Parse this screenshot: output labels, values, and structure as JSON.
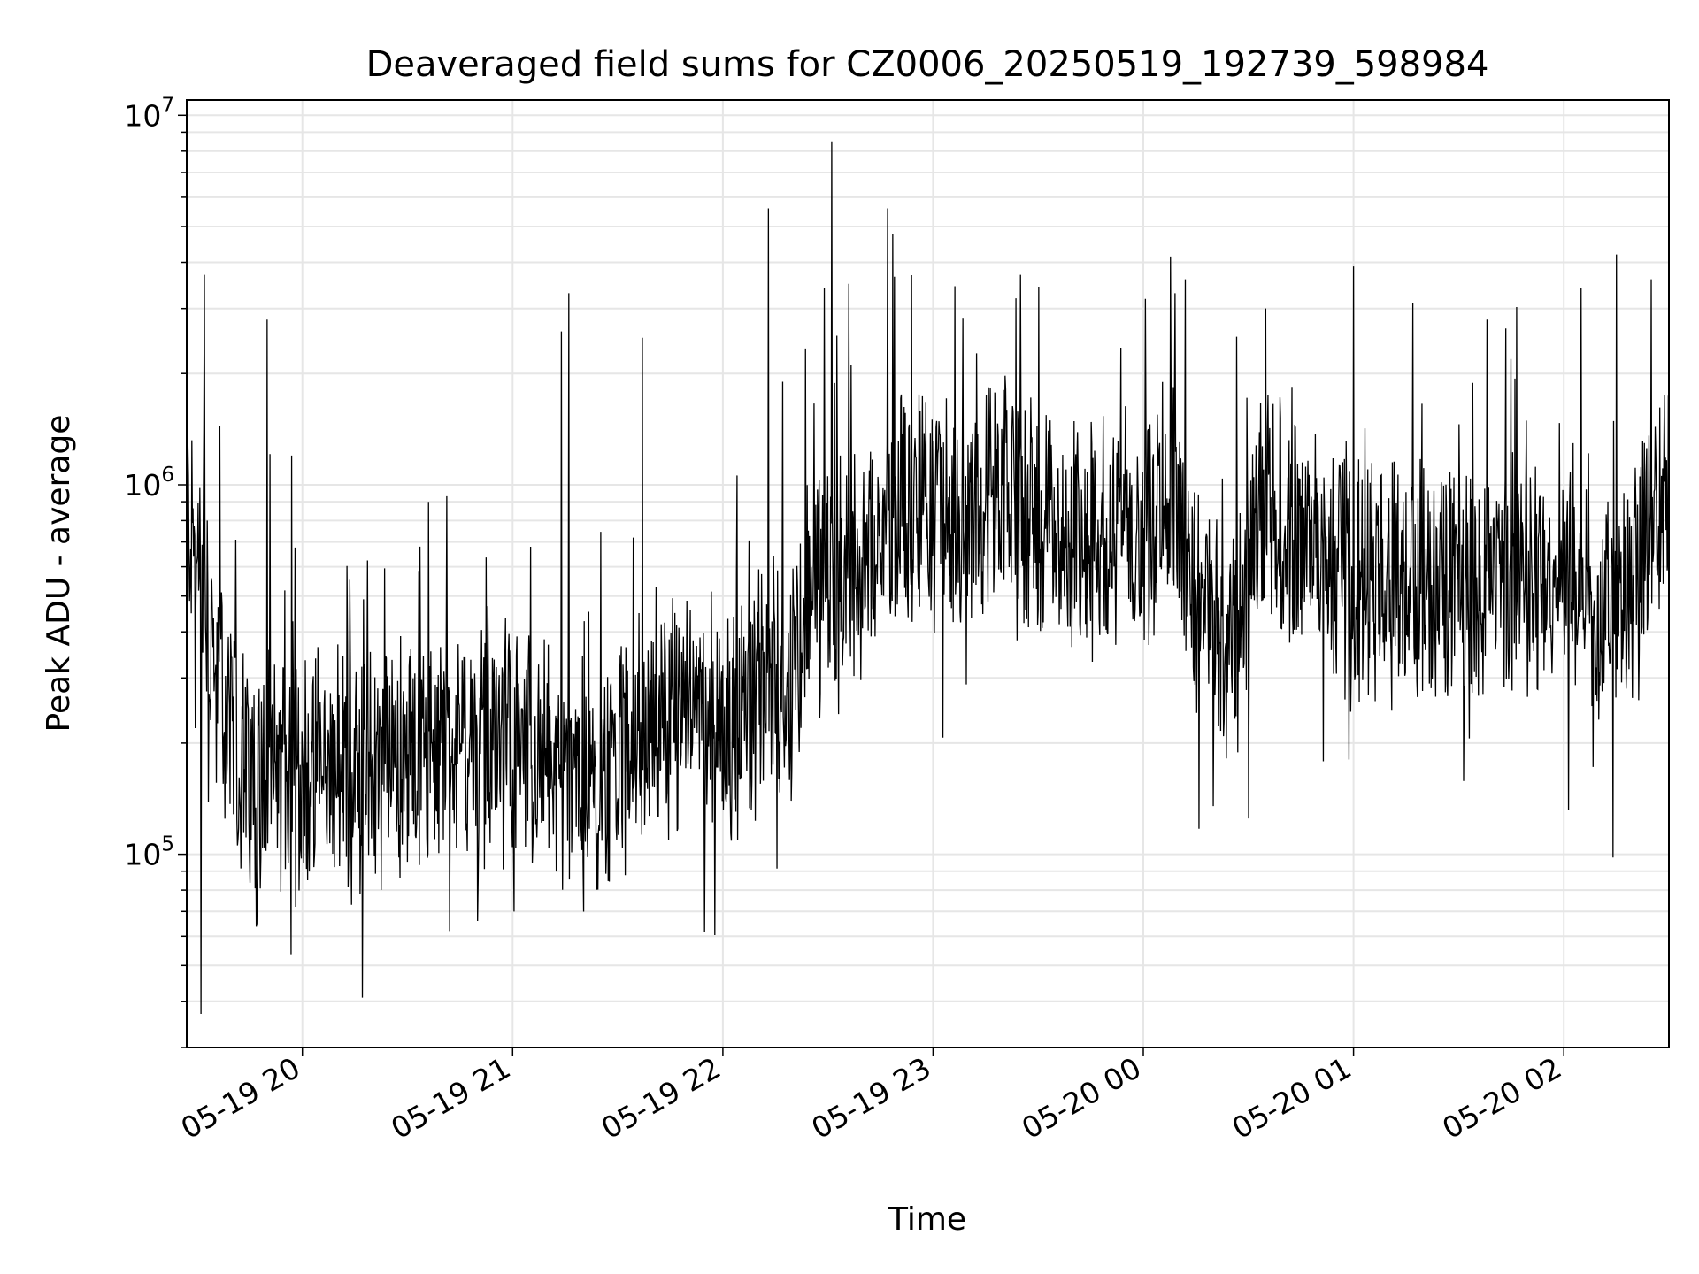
{
  "chart_data": {
    "type": "line",
    "title": "Deaveraged field sums for CZ0006_20250519_192739_598984",
    "xlabel": "Time",
    "ylabel": "Peak ADU - average",
    "yscale": "log",
    "ylim": [
      30000,
      11000000
    ],
    "xlim": [
      "2025-05-19 19:27",
      "2025-05-20 02:30"
    ],
    "grid": true,
    "line_color": "#000000",
    "grid_color": "#e6e6e6",
    "x_ticks": [
      {
        "value": "2025-05-19 20:00",
        "label": "05-19 20"
      },
      {
        "value": "2025-05-19 21:00",
        "label": "05-19 21"
      },
      {
        "value": "2025-05-19 22:00",
        "label": "05-19 22"
      },
      {
        "value": "2025-05-19 23:00",
        "label": "05-19 23"
      },
      {
        "value": "2025-05-20 00:00",
        "label": "05-20 00"
      },
      {
        "value": "2025-05-20 01:00",
        "label": "05-20 01"
      },
      {
        "value": "2025-05-20 02:00",
        "label": "05-20 02"
      }
    ],
    "y_ticks": [
      {
        "value": 100000,
        "base": "10",
        "exp": "5"
      },
      {
        "value": 1000000,
        "base": "10",
        "exp": "6"
      },
      {
        "value": 10000000,
        "base": "10",
        "exp": "7"
      }
    ],
    "baseline": [
      {
        "x": "2025-05-19 19:27",
        "y": 900000
      },
      {
        "x": "2025-05-19 19:35",
        "y": 300000
      },
      {
        "x": "2025-05-19 19:45",
        "y": 160000
      },
      {
        "x": "2025-05-19 20:00",
        "y": 160000
      },
      {
        "x": "2025-05-19 20:30",
        "y": 180000
      },
      {
        "x": "2025-05-19 21:00",
        "y": 200000
      },
      {
        "x": "2025-05-19 21:20",
        "y": 150000
      },
      {
        "x": "2025-05-19 21:45",
        "y": 230000
      },
      {
        "x": "2025-05-19 22:00",
        "y": 230000
      },
      {
        "x": "2025-05-19 22:20",
        "y": 300000
      },
      {
        "x": "2025-05-19 22:25",
        "y": 500000
      },
      {
        "x": "2025-05-19 22:40",
        "y": 600000
      },
      {
        "x": "2025-05-19 22:50",
        "y": 850000
      },
      {
        "x": "2025-05-19 23:00",
        "y": 900000
      },
      {
        "x": "2025-05-19 23:30",
        "y": 850000
      },
      {
        "x": "2025-05-19 23:40",
        "y": 700000
      },
      {
        "x": "2025-05-20 00:00",
        "y": 800000
      },
      {
        "x": "2025-05-20 00:08",
        "y": 1000000
      },
      {
        "x": "2025-05-20 00:15",
        "y": 500000
      },
      {
        "x": "2025-05-20 00:25",
        "y": 350000
      },
      {
        "x": "2025-05-20 00:35",
        "y": 900000
      },
      {
        "x": "2025-05-20 00:45",
        "y": 700000
      },
      {
        "x": "2025-05-20 01:00",
        "y": 550000
      },
      {
        "x": "2025-05-20 01:30",
        "y": 550000
      },
      {
        "x": "2025-05-20 02:00",
        "y": 550000
      },
      {
        "x": "2025-05-20 02:10",
        "y": 400000
      },
      {
        "x": "2025-05-20 02:20",
        "y": 600000
      },
      {
        "x": "2025-05-20 02:30",
        "y": 900000
      }
    ],
    "spikes_up": [
      {
        "x": "2025-05-19 19:32",
        "y": 3700000
      },
      {
        "x": "2025-05-19 19:50",
        "y": 2800000
      },
      {
        "x": "2025-05-19 19:57",
        "y": 1200000
      },
      {
        "x": "2025-05-19 21:14",
        "y": 2600000
      },
      {
        "x": "2025-05-19 21:16",
        "y": 3300000
      },
      {
        "x": "2025-05-19 21:37",
        "y": 2500000
      },
      {
        "x": "2025-05-19 22:13",
        "y": 5600000
      },
      {
        "x": "2025-05-19 22:17",
        "y": 1900000
      },
      {
        "x": "2025-05-19 22:29",
        "y": 3400000
      },
      {
        "x": "2025-05-19 22:31",
        "y": 8500000
      },
      {
        "x": "2025-05-19 22:36",
        "y": 3500000
      },
      {
        "x": "2025-05-19 22:47",
        "y": 5600000
      },
      {
        "x": "2025-05-19 23:25",
        "y": 3700000
      },
      {
        "x": "2025-05-20 00:09",
        "y": 3300000
      },
      {
        "x": "2025-05-20 00:12",
        "y": 3600000
      },
      {
        "x": "2025-05-20 00:35",
        "y": 3000000
      },
      {
        "x": "2025-05-20 01:00",
        "y": 3900000
      },
      {
        "x": "2025-05-20 01:17",
        "y": 3100000
      },
      {
        "x": "2025-05-20 01:38",
        "y": 2800000
      },
      {
        "x": "2025-05-20 02:05",
        "y": 3400000
      },
      {
        "x": "2025-05-20 02:15",
        "y": 4200000
      },
      {
        "x": "2025-05-20 02:25",
        "y": 3600000
      }
    ],
    "spikes_down": [
      {
        "x": "2025-05-19 19:31",
        "y": 37000
      },
      {
        "x": "2025-05-19 19:47",
        "y": 65000
      },
      {
        "x": "2025-05-19 20:14",
        "y": 73000
      },
      {
        "x": "2025-05-19 20:42",
        "y": 62000
      },
      {
        "x": "2025-05-19 20:50",
        "y": 66000
      },
      {
        "x": "2025-05-20 00:20",
        "y": 135000
      },
      {
        "x": "2025-05-20 00:30",
        "y": 125000
      },
      {
        "x": "2025-05-20 02:14",
        "y": 98000
      }
    ]
  }
}
